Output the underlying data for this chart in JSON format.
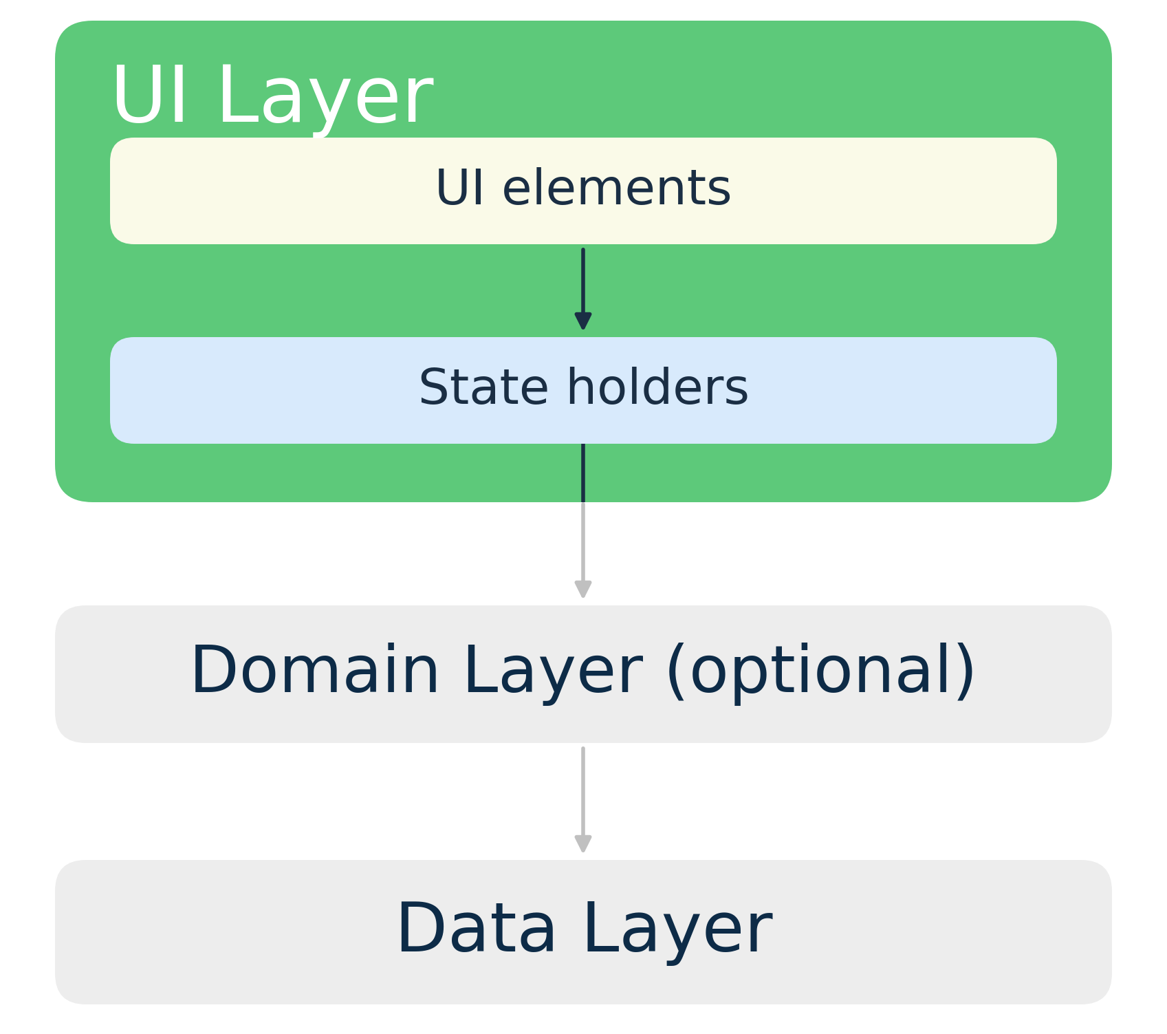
{
  "background_color": "#ffffff",
  "ui_layer_bg": "#5DC97A",
  "ui_layer_title": "UI Layer",
  "ui_layer_title_color": "#ffffff",
  "ui_elements_bg": "#FAFAE8",
  "ui_elements_text": "UI elements",
  "ui_elements_text_color": "#1a2e44",
  "state_holders_bg": "#D8EAFC",
  "state_holders_text": "State holders",
  "state_holders_text_color": "#1a2e44",
  "domain_layer_bg": "#EDEDED",
  "domain_layer_text": "Domain Layer (optional)",
  "domain_layer_text_color": "#0d2b47",
  "data_layer_bg": "#EDEDED",
  "data_layer_text": "Data Layer",
  "data_layer_text_color": "#0d2b47",
  "dark_arrow_color": "#1a2e44",
  "gray_arrow_color": "#c0c0c0"
}
